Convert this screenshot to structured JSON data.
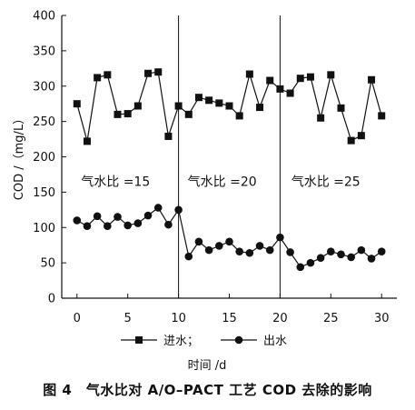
{
  "chart_data": {
    "type": "line",
    "x": [
      0,
      1,
      2,
      3,
      4,
      5,
      6,
      7,
      8,
      9,
      10,
      11,
      12,
      13,
      14,
      15,
      16,
      17,
      18,
      19,
      20,
      21,
      22,
      23,
      24,
      25,
      26,
      27,
      28,
      29,
      30
    ],
    "series": [
      {
        "name": "进水",
        "marker": "square",
        "values": [
          275,
          222,
          312,
          316,
          260,
          261,
          272,
          318,
          320,
          229,
          272,
          260,
          284,
          280,
          276,
          272,
          258,
          317,
          270,
          308,
          296,
          290,
          311,
          313,
          255,
          316,
          269,
          223,
          230,
          309,
          258
        ]
      },
      {
        "name": "出水",
        "marker": "circle",
        "values": [
          110,
          102,
          116,
          102,
          115,
          103,
          106,
          117,
          128,
          104,
          125,
          59,
          80,
          68,
          74,
          80,
          66,
          64,
          74,
          68,
          86,
          65,
          44,
          50,
          57,
          66,
          62,
          58,
          68,
          56,
          66
        ]
      }
    ],
    "ylabel": "COD /（mg/L）",
    "xlabel": "时间 /d",
    "xlim": [
      -1.5,
      31.5
    ],
    "ylim": [
      0,
      400
    ],
    "xticks": [
      0,
      5,
      10,
      15,
      20,
      25,
      30
    ],
    "yticks": [
      0,
      50,
      100,
      150,
      200,
      250,
      300,
      350,
      400
    ],
    "phase_dividers": [
      10,
      20
    ],
    "annotations": [
      {
        "text": "气水比 =15",
        "x": 3.8,
        "y": 165
      },
      {
        "text": "气水比 =20",
        "x": 14.3,
        "y": 165
      },
      {
        "text": "气水比 =25",
        "x": 24.5,
        "y": 165
      }
    ],
    "legend": {
      "position": "bottom",
      "labels": [
        "进水；",
        "出水"
      ]
    },
    "grid": false
  },
  "caption": "图 4　气水比对 A/O–PACT 工艺 COD 去除的影响"
}
